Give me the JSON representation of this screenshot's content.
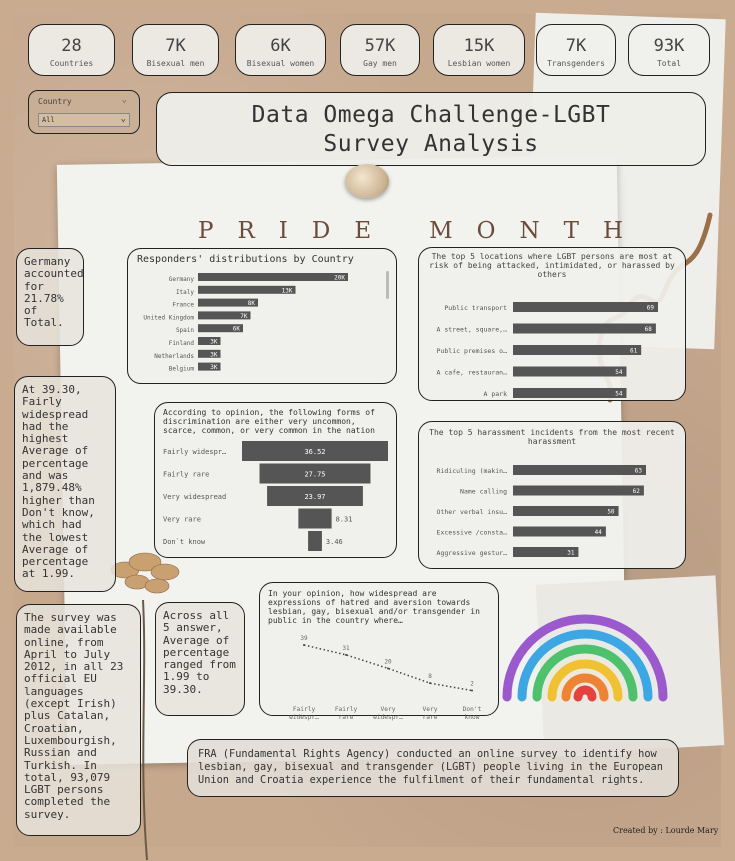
{
  "kpis": [
    {
      "value": "28",
      "label": "Countries"
    },
    {
      "value": "7K",
      "label": "Bisexual men"
    },
    {
      "value": "6K",
      "label": "Bisexual women"
    },
    {
      "value": "57K",
      "label": "Gay men"
    },
    {
      "value": "15K",
      "label": "Lesbian women"
    },
    {
      "value": "7K",
      "label": "Transgenders"
    },
    {
      "value": "93K",
      "label": "Total"
    }
  ],
  "filter": {
    "label": "Country",
    "value": "All"
  },
  "title": {
    "line1": "Data Omega Challenge-LGBT",
    "line2": "Survey Analysis"
  },
  "pride": {
    "word1": "PRIDE",
    "word2": "MONTH"
  },
  "notes": {
    "germany": "Germany accounted for 21.78% of Total.",
    "widespread": "At 39.30, Fairly widespread had the highest Average of percentage and was 1,879.48% higher than Don't know, which had the lowest Average of percentage at 1.99.",
    "survey": "The survey was made available online, from April to July 2012, in all 23 official EU languages (except Irish) plus Catalan, Croatian, Luxembourgish, Russian and Turkish. In total, 93,079 LGBT persons completed the survey.",
    "across": "Across all 5 answer, Average of percentage ranged from 1.99 to 39.30."
  },
  "fra": "FRA (Fundamental Rights Agency) conducted an online survey to identify how lesbian, gay, bisexual and transgender (LGBT) people living in the European Union and Croatia experience the fulfilment of their fundamental rights.",
  "credit": "Created by : Lourde Mary",
  "colors": {
    "bar": "#555555",
    "frame": "#222222",
    "kraft": "#c6a88d",
    "paper": "#f2f2ef"
  },
  "chart_data": [
    {
      "type": "bar",
      "orientation": "horizontal",
      "title": "Responders' distributions by Country",
      "categories": [
        "Germany",
        "Italy",
        "France",
        "United Kingdom",
        "Spain",
        "Finland",
        "Netherlands",
        "Belgium"
      ],
      "values": [
        20,
        13,
        8,
        7,
        6,
        3,
        3,
        3
      ],
      "data_labels": [
        "20K",
        "13K",
        "8K",
        "7K",
        "6K",
        "3K",
        "3K",
        "3K"
      ]
    },
    {
      "type": "bar",
      "orientation": "horizontal",
      "title": "The top 5 locations where LGBT persons are most at risk of being attacked, intimidated, or harassed by others",
      "categories": [
        "Public transport",
        "A street, square,…",
        "Public premises o…",
        "A cafe, restauran…",
        "A park"
      ],
      "values": [
        69,
        68,
        61,
        54,
        54
      ]
    },
    {
      "type": "bar",
      "orientation": "funnel",
      "title": "According to opinion, the following forms of discrimination are either very uncommon, scarce, common, or very common in the nation",
      "categories": [
        "Fairly widespr…",
        "Fairly rare",
        "Very widespread",
        "Very rare",
        "Don`t know"
      ],
      "values": [
        36.52,
        27.75,
        23.97,
        8.31,
        3.46
      ]
    },
    {
      "type": "bar",
      "orientation": "horizontal",
      "title": "The top 5 harassment incidents from the most recent harassment",
      "categories": [
        "Ridiculing (makin…",
        "Name calling",
        "Other verbal insu…",
        "Excessive /consta…",
        "Aggressive gestur…"
      ],
      "values": [
        63,
        62,
        50,
        44,
        31
      ]
    },
    {
      "type": "line",
      "title": "In your opinion, how widespread are expressions of hatred and aversion towards lesbian, gay, bisexual and/or transgender in public in the country where…",
      "categories": [
        "Fairly widespr…",
        "Fairly rare",
        "Very widespr…",
        "Very rare",
        "Don't know"
      ],
      "values": [
        39,
        31,
        20,
        8,
        2
      ]
    }
  ]
}
